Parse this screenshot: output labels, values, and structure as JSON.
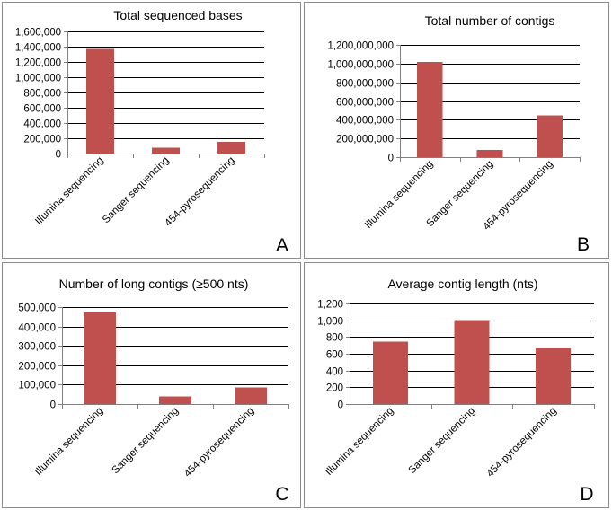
{
  "colors": {
    "bar": "#c0504d",
    "grid": "#000000",
    "axis": "#808080"
  },
  "chart_data": [
    {
      "id": "A",
      "panel_label": "A",
      "type": "bar",
      "title": "Total sequenced bases",
      "categories": [
        "Illumina sequencing",
        "Sanger sequencing",
        "454-pyrosequencing"
      ],
      "values": [
        1370000,
        75000,
        155000
      ],
      "ylim": [
        0,
        1600000
      ],
      "ticks": [
        0,
        200000,
        400000,
        600000,
        800000,
        1000000,
        1200000,
        1400000,
        1600000
      ],
      "tick_labels": [
        "0",
        "200,000",
        "400,000",
        "600,000",
        "800,000",
        "1,000,000",
        "1,200,000",
        "1,400,000",
        "1,600,000"
      ],
      "xlabel": "",
      "ylabel": ""
    },
    {
      "id": "B",
      "panel_label": "B",
      "type": "bar",
      "title": "Total number of contigs",
      "categories": [
        "Illumina sequencing",
        "Sanger sequencing",
        "454-pyrosequencing"
      ],
      "values": [
        1020000000,
        75000000,
        445000000
      ],
      "ylim": [
        0,
        1200000000
      ],
      "ticks": [
        0,
        200000000,
        400000000,
        600000000,
        800000000,
        1000000000,
        1200000000
      ],
      "tick_labels": [
        "0",
        "200,000,000",
        "400,000,000",
        "600,000,000",
        "800,000,000",
        "1,000,000,000",
        "1,200,000,000"
      ],
      "xlabel": "",
      "ylabel": ""
    },
    {
      "id": "C",
      "panel_label": "C",
      "type": "bar",
      "title": "Number of long contigs (≥500 nts)",
      "categories": [
        "Illumina sequencing",
        "Sanger sequencing",
        "454-pyrosequencing"
      ],
      "values": [
        473000,
        40000,
        85000
      ],
      "ylim": [
        0,
        500000
      ],
      "ticks": [
        0,
        100000,
        200000,
        300000,
        400000,
        500000
      ],
      "tick_labels": [
        "0",
        "100,000",
        "200,000",
        "300,000",
        "400,000",
        "500,000"
      ],
      "xlabel": "",
      "ylabel": ""
    },
    {
      "id": "D",
      "panel_label": "D",
      "type": "bar",
      "title": "Average contig length (nts)",
      "categories": [
        "Illumina sequencing",
        "Sanger sequencing",
        "454-pyrosequencing"
      ],
      "values": [
        745,
        1000,
        665
      ],
      "ylim": [
        0,
        1200
      ],
      "ticks": [
        0,
        200,
        400,
        600,
        800,
        1000,
        1200
      ],
      "tick_labels": [
        "0",
        "200",
        "400",
        "600",
        "800",
        "1,000",
        "1,200"
      ],
      "xlabel": "",
      "ylabel": ""
    }
  ]
}
